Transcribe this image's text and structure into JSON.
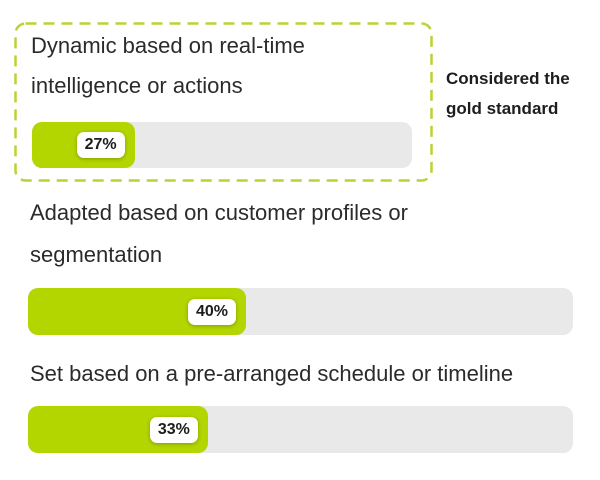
{
  "chart_data": {
    "type": "bar",
    "orientation": "horizontal",
    "categories": [
      "Dynamic based on real-time intelligence or actions",
      "Adapted based on customer profiles or segmentation",
      "Set based on a pre-arranged schedule or timeline"
    ],
    "values": [
      27,
      40,
      33
    ],
    "value_labels": [
      "27%",
      "40%",
      "33%"
    ],
    "xlim": [
      0,
      100
    ],
    "grid": false,
    "legend": "none",
    "highlight": {
      "category_index": 0,
      "style": "dashed-outline",
      "annotation": "Considered the gold standard"
    },
    "colors": {
      "bar_fill": "#b4d600",
      "bar_track": "#e9e9e9",
      "highlight_border": "#b9d333",
      "label_text": "#2b2b2b",
      "badge_bg": "#ffffff",
      "badge_text": "#1d1d1d",
      "background": "#ffffff"
    }
  }
}
